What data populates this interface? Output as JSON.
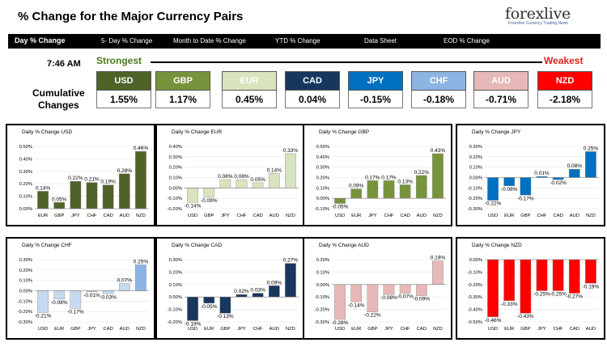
{
  "header": {
    "title": "% Change for the Major Currency Pairs",
    "logo_text_main": "forexlive",
    "logo_tagline": "Forexlive Currency Trading News"
  },
  "nav": [
    "Day % Change",
    "5- Day % Change",
    "Month to Date % Change",
    "YTD % Change",
    "Data Sheet",
    "EOD % Change"
  ],
  "time": "7:46 AM",
  "strongest_label": "Strongest",
  "weakest_label": "Weakest",
  "cumulative_label_1": "Cumulative",
  "cumulative_label_2": "Changes",
  "currencies": [
    {
      "name": "USD",
      "value": "1.55%",
      "color": "#4f6228"
    },
    {
      "name": "GBP",
      "value": "1.17%",
      "color": "#77933c"
    },
    {
      "name": "EUR",
      "value": "0.45%",
      "color": "#d7e4bd"
    },
    {
      "name": "CAD",
      "value": "0.04%",
      "color": "#17375e"
    },
    {
      "name": "JPY",
      "value": "-0.15%",
      "color": "#0070c0"
    },
    {
      "name": "CHF",
      "value": "-0.18%",
      "color": "#8db4e2"
    },
    {
      "name": "AUD",
      "value": "-0.71%",
      "color": "#e6b9b8"
    },
    {
      "name": "NZD",
      "value": "-2.18%",
      "color": "#ff0000"
    }
  ],
  "chart_data": [
    {
      "type": "bar",
      "title": "Daily % Change USD",
      "categories": [
        "EUR",
        "GBP",
        "JPY",
        "CHF",
        "CAD",
        "AUD",
        "NZD"
      ],
      "values": [
        0.14,
        0.05,
        0.22,
        0.21,
        0.19,
        0.28,
        0.46
      ],
      "labels": [
        "0.14%",
        "0.05%",
        "0.22%",
        "0.21%",
        "0.19%",
        "0.28%",
        "0.46%"
      ],
      "ylim": [
        0.0,
        0.5
      ],
      "ticks": [
        "0.00%",
        "0.10%",
        "0.20%",
        "0.30%",
        "0.40%",
        "0.50%"
      ],
      "tickvals": [
        0,
        0.1,
        0.2,
        0.3,
        0.4,
        0.5
      ],
      "color": "#4f6228",
      "last_color": "#4f6228"
    },
    {
      "type": "bar",
      "title": "Daily % Change EUR",
      "categories": [
        "USD",
        "GBP",
        "JPY",
        "CHF",
        "CAD",
        "AUD",
        "NZD"
      ],
      "values": [
        -0.14,
        -0.09,
        0.08,
        0.08,
        0.05,
        0.14,
        0.33
      ],
      "labels": [
        "-0.14%",
        "-0.09%",
        "0.08%",
        "0.08%",
        "0.05%",
        "0.14%",
        "0.33%"
      ],
      "ylim": [
        -0.2,
        0.4
      ],
      "ticks": [
        "-0.20%",
        "-0.10%",
        "0.00%",
        "0.10%",
        "0.20%",
        "0.30%",
        "0.40%"
      ],
      "tickvals": [
        -0.2,
        -0.1,
        0,
        0.1,
        0.2,
        0.3,
        0.4
      ],
      "color": "#d7e4bd",
      "last_color": "#d7e4bd"
    },
    {
      "type": "bar",
      "title": "Daily % Change GBP",
      "categories": [
        "USD",
        "EUR",
        "JPY",
        "CHF",
        "CAD",
        "AUD",
        "NZD"
      ],
      "values": [
        -0.05,
        0.09,
        0.17,
        0.17,
        0.13,
        0.22,
        0.43
      ],
      "labels": [
        "-0.05%",
        "0.09%",
        "0.17%",
        "0.17%",
        "0.13%",
        "0.22%",
        "0.43%"
      ],
      "ylim": [
        -0.1,
        0.5
      ],
      "ticks": [
        "-0.10%",
        "0.00%",
        "0.10%",
        "0.20%",
        "0.30%",
        "0.40%",
        "0.50%"
      ],
      "tickvals": [
        -0.1,
        0,
        0.1,
        0.2,
        0.3,
        0.4,
        0.5
      ],
      "color": "#77933c",
      "last_color": "#77933c"
    },
    {
      "type": "bar",
      "title": "Daily % Change JPY",
      "categories": [
        "USD",
        "EUR",
        "GBP",
        "CHF",
        "CAD",
        "AUD",
        "NZD"
      ],
      "values": [
        -0.22,
        -0.08,
        -0.17,
        0.01,
        -0.02,
        0.08,
        0.25
      ],
      "labels": [
        "-0.22%",
        "-0.08%",
        "-0.17%",
        "0.01%",
        "-0.02%",
        "0.08%",
        "0.25%"
      ],
      "ylim": [
        -0.3,
        0.3
      ],
      "ticks": [
        "-0.30%",
        "-0.20%",
        "-0.10%",
        "0.00%",
        "0.10%",
        "0.20%",
        "0.30%"
      ],
      "tickvals": [
        -0.3,
        -0.2,
        -0.1,
        0,
        0.1,
        0.2,
        0.3
      ],
      "color": "#0070c0",
      "last_color": "#0070c0"
    },
    {
      "type": "bar",
      "title": "Daily % Change CHF",
      "categories": [
        "USD",
        "EUR",
        "GBP",
        "JPY",
        "CAD",
        "AUD",
        "NZD"
      ],
      "values": [
        -0.21,
        -0.08,
        -0.17,
        -0.01,
        -0.03,
        0.07,
        0.25
      ],
      "labels": [
        "-0.21%",
        "-0.08%",
        "-0.17%",
        "-0.01%",
        "-0.03%",
        "0.07%",
        "0.25%"
      ],
      "ylim": [
        -0.3,
        0.3
      ],
      "ticks": [
        "-0.30%",
        "-0.20%",
        "-0.10%",
        "0.00%",
        "0.10%",
        "0.20%",
        "0.30%"
      ],
      "tickvals": [
        -0.3,
        -0.2,
        -0.1,
        0,
        0.1,
        0.2,
        0.3
      ],
      "color": "#c5d9f1",
      "last_color": "#8db4e2"
    },
    {
      "type": "bar",
      "title": "Daily % Change CAD",
      "categories": [
        "USD",
        "EUR",
        "GBP",
        "JPY",
        "CHF",
        "AUD",
        "NZD"
      ],
      "values": [
        -0.19,
        -0.05,
        -0.13,
        0.02,
        0.03,
        0.09,
        0.27
      ],
      "labels": [
        "-0.19%",
        "-0.05%",
        "-0.13%",
        "0.02%",
        "0.03%",
        "0.09%",
        "0.27%"
      ],
      "ylim": [
        -0.2,
        0.3
      ],
      "ticks": [
        "-0.20%",
        "-0.10%",
        "0.00%",
        "0.10%",
        "0.20%",
        "0.30%"
      ],
      "tickvals": [
        -0.2,
        -0.1,
        0,
        0.1,
        0.2,
        0.3
      ],
      "color": "#17375e",
      "last_color": "#17375e"
    },
    {
      "type": "bar",
      "title": "Daily % Change AUD",
      "categories": [
        "USD",
        "EUR",
        "GBP",
        "JPY",
        "CHF",
        "CAD",
        "NZD"
      ],
      "values": [
        -0.28,
        -0.14,
        -0.22,
        -0.08,
        -0.07,
        -0.09,
        0.19
      ],
      "labels": [
        "-0.28%",
        "-0.14%",
        "-0.22%",
        "-0.08%",
        "-0.07%",
        "-0.09%",
        "0.19%"
      ],
      "ylim": [
        -0.3,
        0.2
      ],
      "ticks": [
        "-0.30%",
        "-0.20%",
        "-0.10%",
        "0.00%",
        "0.10%",
        "0.20%"
      ],
      "tickvals": [
        -0.3,
        -0.2,
        -0.1,
        0,
        0.1,
        0.2
      ],
      "color": "#e6b9b8",
      "last_color": "#e6b9b8"
    },
    {
      "type": "bar",
      "title": "Daily % Change NZD",
      "categories": [
        "USD",
        "EUR",
        "GBP",
        "JPY",
        "CHF",
        "CAD",
        "AUD"
      ],
      "values": [
        -0.46,
        -0.33,
        -0.43,
        -0.25,
        -0.25,
        -0.27,
        -0.19
      ],
      "labels": [
        "-0.46%",
        "-0.33%",
        "-0.43%",
        "-0.25%",
        "-0.25%",
        "-0.27%",
        "-0.19%"
      ],
      "ylim": [
        -0.5,
        0.0
      ],
      "ticks": [
        "-0.50%",
        "-0.40%",
        "-0.30%",
        "-0.20%",
        "-0.10%",
        "0.00%"
      ],
      "tickvals": [
        -0.5,
        -0.4,
        -0.3,
        -0.2,
        -0.1,
        0
      ],
      "color": "#ff0000",
      "last_color": "#ff0000"
    }
  ]
}
